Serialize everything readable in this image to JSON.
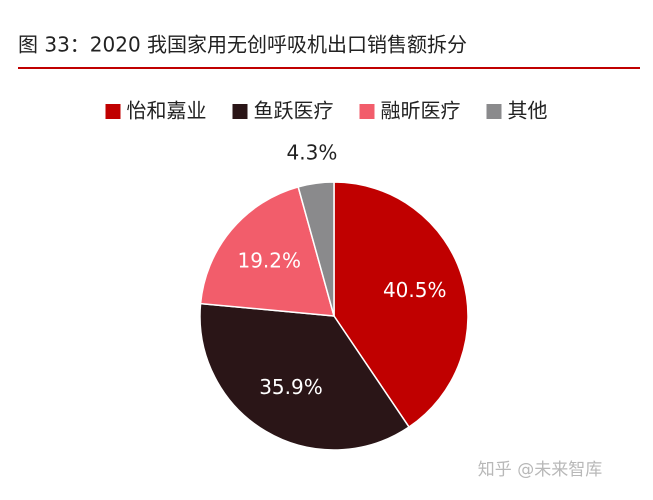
{
  "chart_data": {
    "type": "pie",
    "title": "图 33：2020 我国家用无创呼吸机出口销售额拆分",
    "categories": [
      "怡和嘉业",
      "鱼跃医疗",
      "融昕医疗",
      "其他"
    ],
    "values": [
      40.5,
      35.9,
      19.2,
      4.3
    ],
    "value_labels": [
      "40.5%",
      "35.9%",
      "19.2%",
      "4.3%"
    ],
    "colors": [
      "#c00000",
      "#2a1517",
      "#f25d6b",
      "#8a8a8c"
    ],
    "legend": "top",
    "watermark": "知乎 @未来智库"
  }
}
